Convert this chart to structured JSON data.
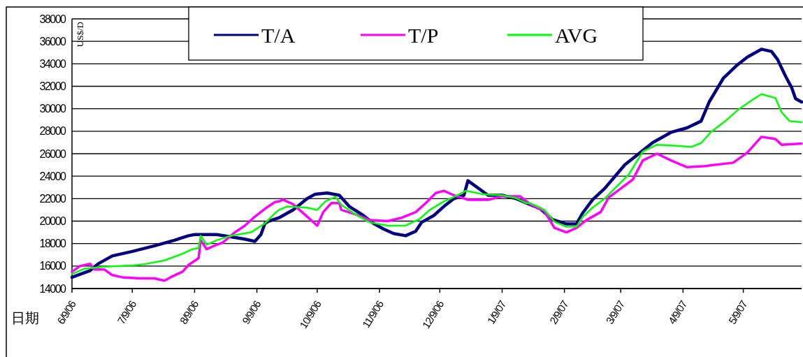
{
  "chart_data": {
    "type": "line",
    "xlabel": "日期",
    "ylabel": "US$/D",
    "legend": "top",
    "grid": "y",
    "line_style": "solid",
    "marker": "none",
    "xlim": [
      "2006-06-09",
      "2007-06-07"
    ],
    "xticks": [
      {
        "value": "2006-06-09",
        "label": "6/9/06"
      },
      {
        "value": "2006-07-09",
        "label": "7/9/06"
      },
      {
        "value": "2006-08-09",
        "label": "8/9/06"
      },
      {
        "value": "2006-09-09",
        "label": "9/9/06"
      },
      {
        "value": "2006-10-09",
        "label": "10/9/06"
      },
      {
        "value": "2006-11-09",
        "label": "11/9/06"
      },
      {
        "value": "2006-12-09",
        "label": "12/9/06"
      },
      {
        "value": "2007-01-09",
        "label": "1/9/07"
      },
      {
        "value": "2007-02-09",
        "label": "2/9/07"
      },
      {
        "value": "2007-03-09",
        "label": "3/9/07"
      },
      {
        "value": "2007-04-09",
        "label": "4/9/07"
      },
      {
        "value": "2007-05-09",
        "label": "5/9/07"
      }
    ],
    "ylim": [
      14000,
      38000
    ],
    "yticks": [
      14000,
      16000,
      18000,
      20000,
      22000,
      24000,
      26000,
      28000,
      30000,
      32000,
      34000,
      36000,
      38000
    ],
    "series": [
      {
        "name": "T/A",
        "color": "#000080",
        "x": [
          "2006-06-09",
          "2006-06-18",
          "2006-06-22",
          "2006-06-29",
          "2006-07-09",
          "2006-07-20",
          "2006-07-30",
          "2006-08-06",
          "2006-08-09",
          "2006-08-20",
          "2006-08-27",
          "2006-09-03",
          "2006-09-08",
          "2006-09-11",
          "2006-09-13",
          "2006-09-15",
          "2006-09-20",
          "2006-09-24",
          "2006-09-27",
          "2006-10-04",
          "2006-10-08",
          "2006-10-14",
          "2006-10-20",
          "2006-10-25",
          "2006-11-01",
          "2006-11-06",
          "2006-11-11",
          "2006-11-16",
          "2006-11-22",
          "2006-11-27",
          "2006-11-30",
          "2006-12-06",
          "2006-12-11",
          "2006-12-16",
          "2006-12-21",
          "2006-12-23",
          "2007-01-02",
          "2007-01-09",
          "2007-01-16",
          "2007-01-28",
          "2007-02-03",
          "2007-02-10",
          "2007-02-15",
          "2007-02-18",
          "2007-02-23",
          "2007-03-01",
          "2007-03-06",
          "2007-03-11",
          "2007-03-18",
          "2007-03-25",
          "2007-04-03",
          "2007-04-11",
          "2007-04-18",
          "2007-04-22",
          "2007-04-29",
          "2007-05-06",
          "2007-05-11",
          "2007-05-18",
          "2007-05-23",
          "2007-05-26",
          "2007-05-30",
          "2007-06-02",
          "2007-06-04",
          "2007-06-07"
        ],
        "values": [
          15000,
          15600,
          16200,
          16900,
          17300,
          17800,
          18300,
          18700,
          18800,
          18800,
          18600,
          18400,
          18200,
          18800,
          19800,
          20000,
          20300,
          20700,
          21000,
          22000,
          22400,
          22500,
          22300,
          21300,
          20500,
          19800,
          19300,
          18900,
          18700,
          19100,
          19900,
          20500,
          21300,
          22000,
          22300,
          23600,
          22300,
          22300,
          22000,
          21100,
          20150,
          19750,
          19750,
          20700,
          21900,
          22900,
          23950,
          25000,
          26000,
          27000,
          27900,
          28300,
          28900,
          30600,
          32700,
          33900,
          34600,
          35300,
          35100,
          34400,
          32900,
          31900,
          30900,
          30600
        ]
      },
      {
        "name": "T/P",
        "color": "#ff00ff",
        "x": [
          "2006-06-09",
          "2006-06-13",
          "2006-06-18",
          "2006-06-20",
          "2006-06-25",
          "2006-06-29",
          "2006-07-04",
          "2006-07-13",
          "2006-07-20",
          "2006-07-25",
          "2006-07-28",
          "2006-08-03",
          "2006-08-06",
          "2006-08-11",
          "2006-08-12",
          "2006-08-15",
          "2006-08-20",
          "2006-08-23",
          "2006-08-29",
          "2006-09-03",
          "2006-09-08",
          "2006-09-13",
          "2006-09-18",
          "2006-09-20",
          "2006-09-22",
          "2006-09-27",
          "2006-10-04",
          "2006-10-09",
          "2006-10-12",
          "2006-10-16",
          "2006-10-20",
          "2006-10-21",
          "2006-10-28",
          "2006-11-04",
          "2006-11-13",
          "2006-11-20",
          "2006-11-27",
          "2006-12-02",
          "2006-12-07",
          "2006-12-11",
          "2006-12-16",
          "2006-12-23",
          "2007-01-02",
          "2007-01-09",
          "2007-01-18",
          "2007-01-23",
          "2007-01-30",
          "2007-02-04",
          "2007-02-10",
          "2007-02-15",
          "2007-02-20",
          "2007-02-27",
          "2007-03-03",
          "2007-03-09",
          "2007-03-15",
          "2007-03-20",
          "2007-03-27",
          "2007-04-03",
          "2007-04-11",
          "2007-04-20",
          "2007-05-04",
          "2007-05-11",
          "2007-05-18",
          "2007-05-25",
          "2007-05-28",
          "2007-06-07"
        ],
        "values": [
          15500,
          16000,
          16200,
          15700,
          15700,
          15200,
          15000,
          14900,
          14900,
          14700,
          15000,
          15500,
          16100,
          16700,
          18300,
          17500,
          17900,
          18100,
          19000,
          19600,
          20400,
          21100,
          21700,
          21750,
          21900,
          21500,
          20400,
          19600,
          20800,
          21600,
          21600,
          21000,
          20600,
          20100,
          20000,
          20300,
          20800,
          21600,
          22500,
          22700,
          22300,
          21900,
          21900,
          22200,
          22200,
          21500,
          20900,
          19400,
          19000,
          19400,
          20100,
          20800,
          22100,
          22900,
          23700,
          25400,
          26000,
          25400,
          24800,
          24900,
          25200,
          26100,
          27500,
          27300,
          26800,
          26900
        ]
      },
      {
        "name": "AVG",
        "color": "#00ff00",
        "x": [
          "2006-06-09",
          "2006-06-15",
          "2006-06-25",
          "2006-07-09",
          "2006-07-16",
          "2006-07-25",
          "2006-08-03",
          "2006-08-08",
          "2006-08-11",
          "2006-08-12",
          "2006-08-15",
          "2006-08-20",
          "2006-08-27",
          "2006-09-06",
          "2006-09-13",
          "2006-09-18",
          "2006-09-20",
          "2006-09-24",
          "2006-10-04",
          "2006-10-09",
          "2006-10-13",
          "2006-10-18",
          "2006-10-21",
          "2006-10-28",
          "2006-11-04",
          "2006-11-13",
          "2006-11-22",
          "2006-11-29",
          "2006-12-04",
          "2006-12-11",
          "2006-12-16",
          "2006-12-22",
          "2006-12-30",
          "2007-01-09",
          "2007-01-16",
          "2007-01-21",
          "2007-01-23",
          "2007-01-30",
          "2007-02-04",
          "2007-02-10",
          "2007-02-15",
          "2007-02-18",
          "2007-02-23",
          "2007-03-01",
          "2007-03-06",
          "2007-03-13",
          "2007-03-20",
          "2007-03-27",
          "2007-04-06",
          "2007-04-13",
          "2007-04-18",
          "2007-04-23",
          "2007-04-30",
          "2007-05-07",
          "2007-05-14",
          "2007-05-18",
          "2007-05-25",
          "2007-05-28",
          "2007-06-01",
          "2007-06-07"
        ],
        "values": [
          15300,
          15750,
          15950,
          16050,
          16200,
          16500,
          17100,
          17500,
          17600,
          18700,
          17900,
          18300,
          18700,
          19000,
          19800,
          20700,
          21000,
          21300,
          21200,
          21000,
          21750,
          22150,
          21450,
          20600,
          19900,
          19600,
          19600,
          20200,
          21000,
          21750,
          22150,
          22700,
          22400,
          22300,
          22050,
          21600,
          21600,
          21000,
          19950,
          19500,
          19500,
          20350,
          21200,
          22000,
          22900,
          24150,
          26200,
          26800,
          26700,
          26600,
          26950,
          27950,
          28900,
          30000,
          30850,
          31300,
          30950,
          29700,
          28900,
          28800
        ]
      }
    ]
  }
}
